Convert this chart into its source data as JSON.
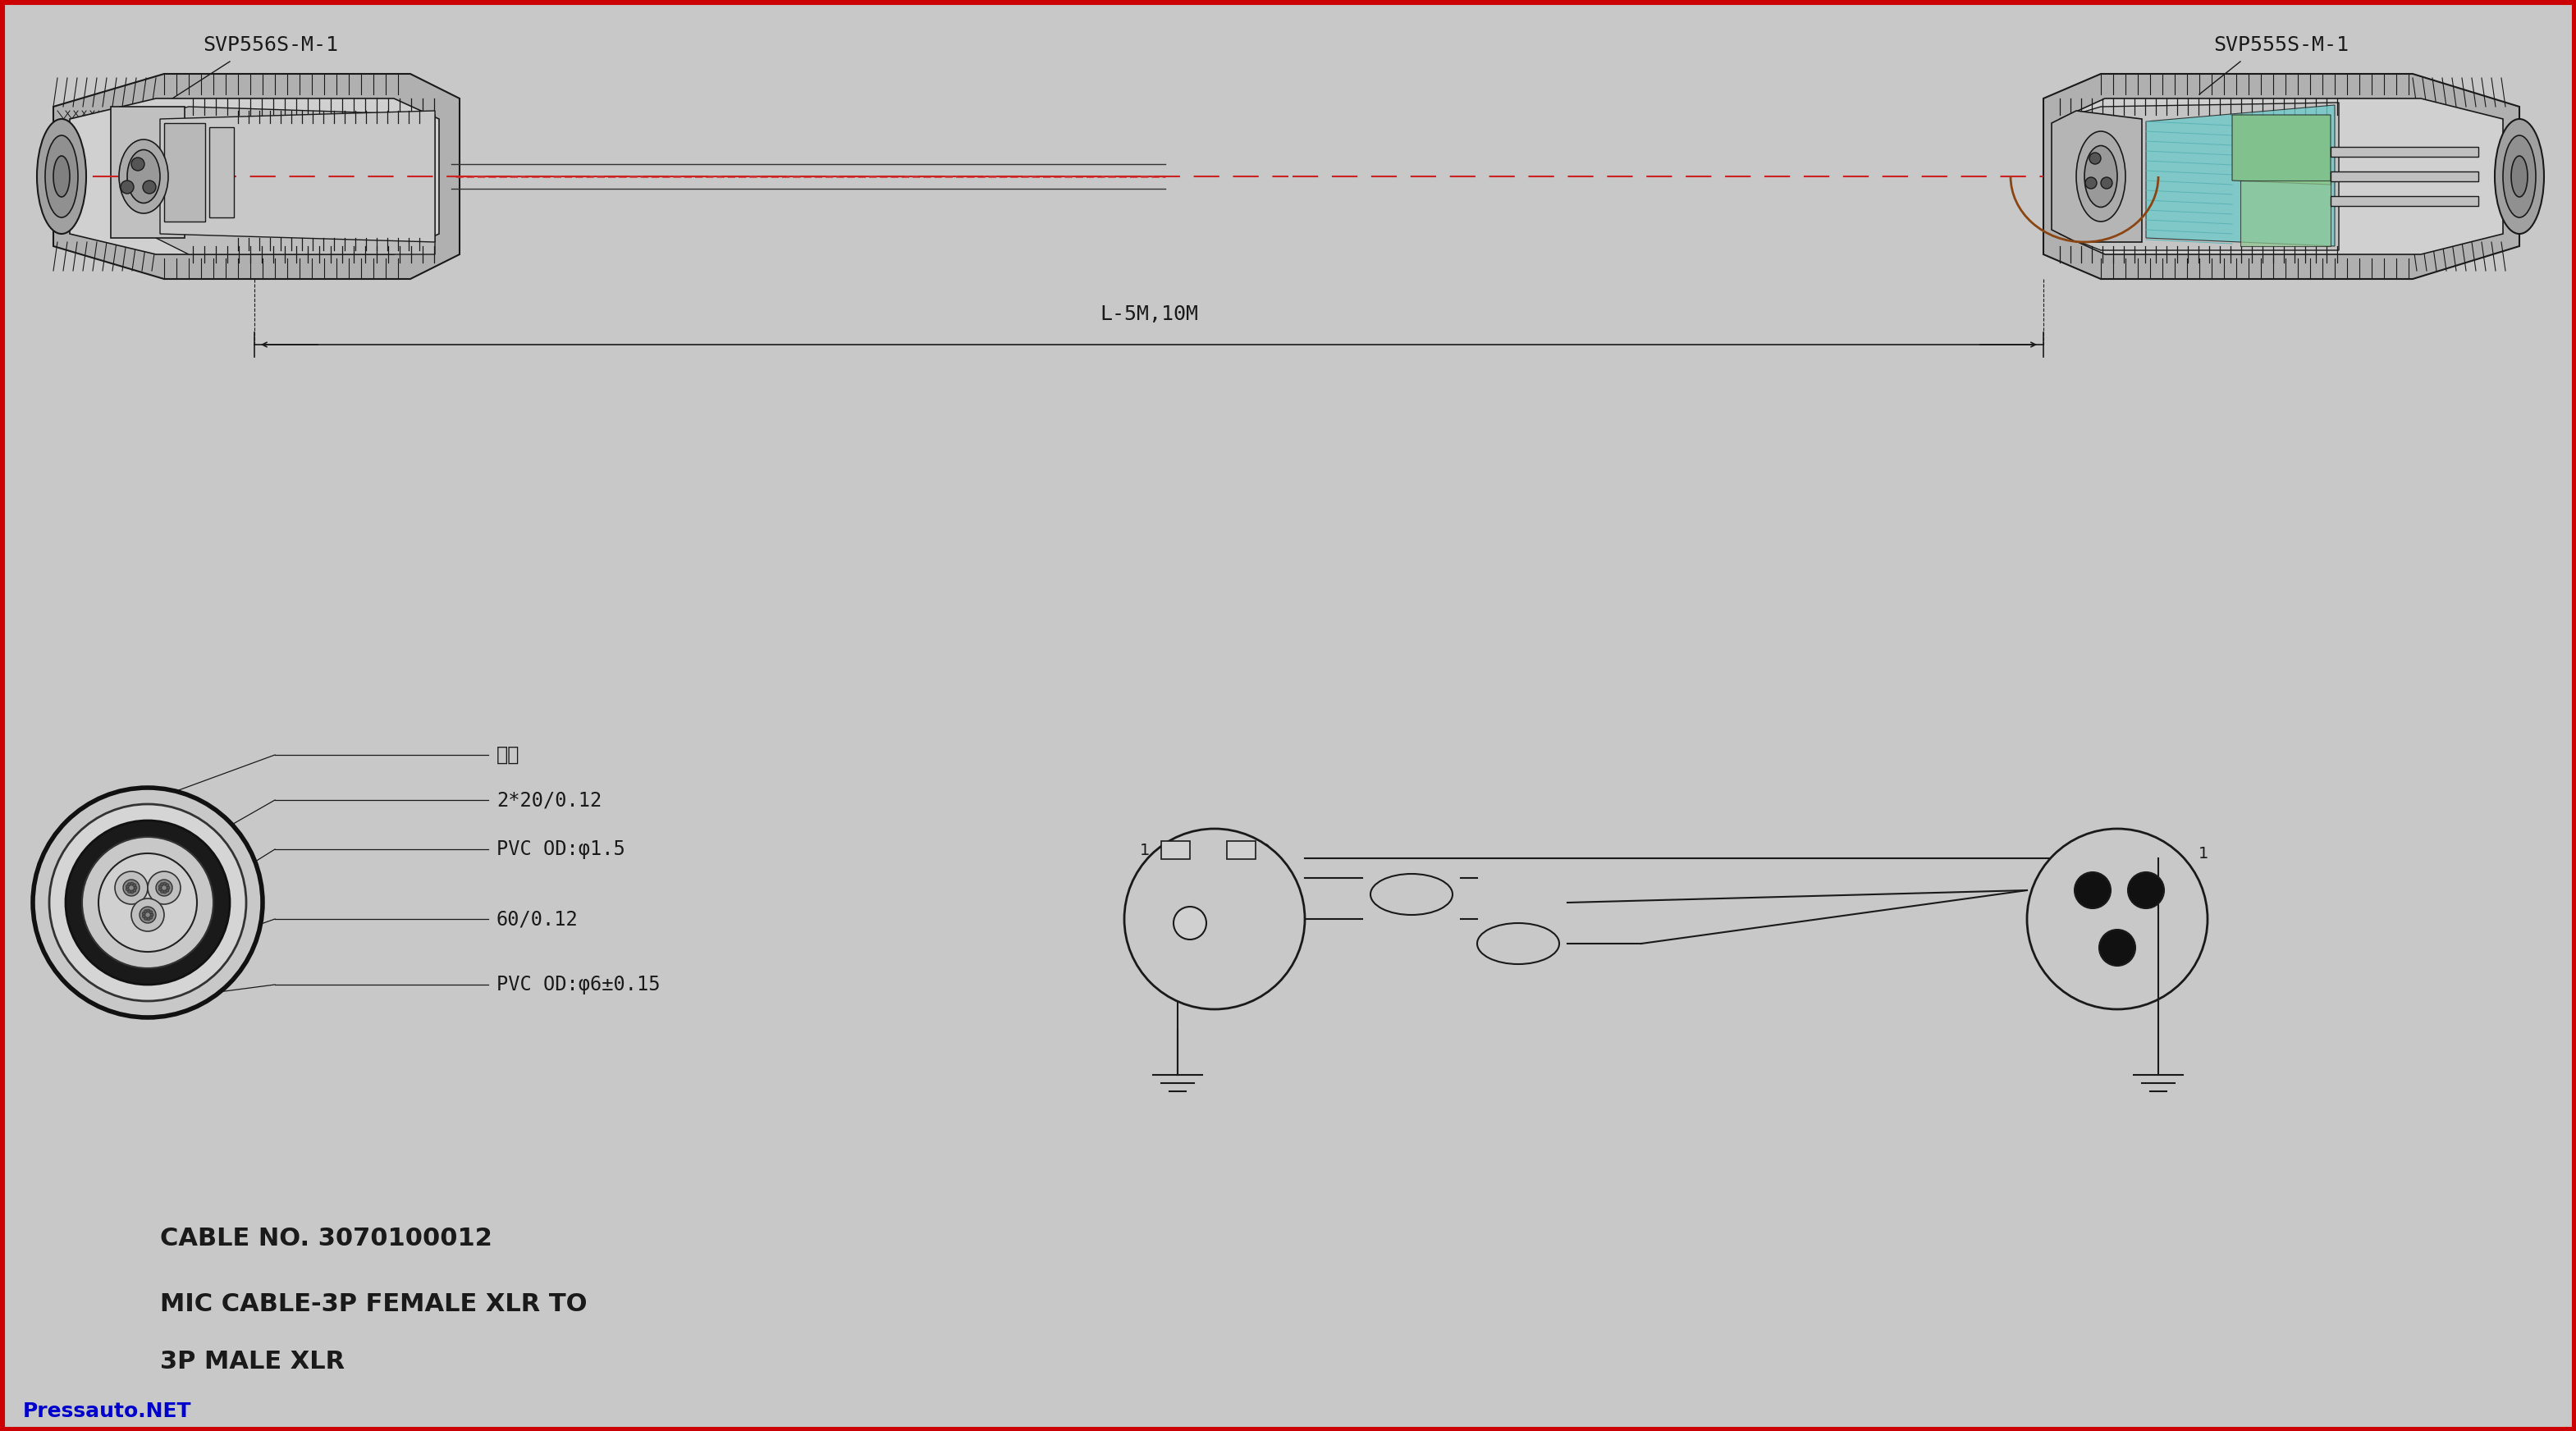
{
  "bg_color": "#c8c8c8",
  "border_color": "#cc0000",
  "border_width": 8,
  "line_color": "#1a1a1a",
  "text_color": "#1a1a1a",
  "blue_text_color": "#0000cc",
  "title1": "CABLE NO. 3070100012",
  "title2": "MIC CABLE-3P FEMALE XLR TO",
  "title3": "3P MALE XLR",
  "watermark": "Pressauto.NET",
  "label_left": "SVP556S-M-1",
  "label_right": "SVP555S-M-1",
  "dim_label": "L-5M,10M",
  "cable_labels": [
    "棉线",
    "2*20/0.12",
    "PVC OD:φ1.5",
    "60/0.12",
    "PVC OD:φ6±0.15"
  ],
  "teal_color": "#5fbfbf",
  "green_color": "#7fbf7f",
  "red_accent": "#cc2222"
}
